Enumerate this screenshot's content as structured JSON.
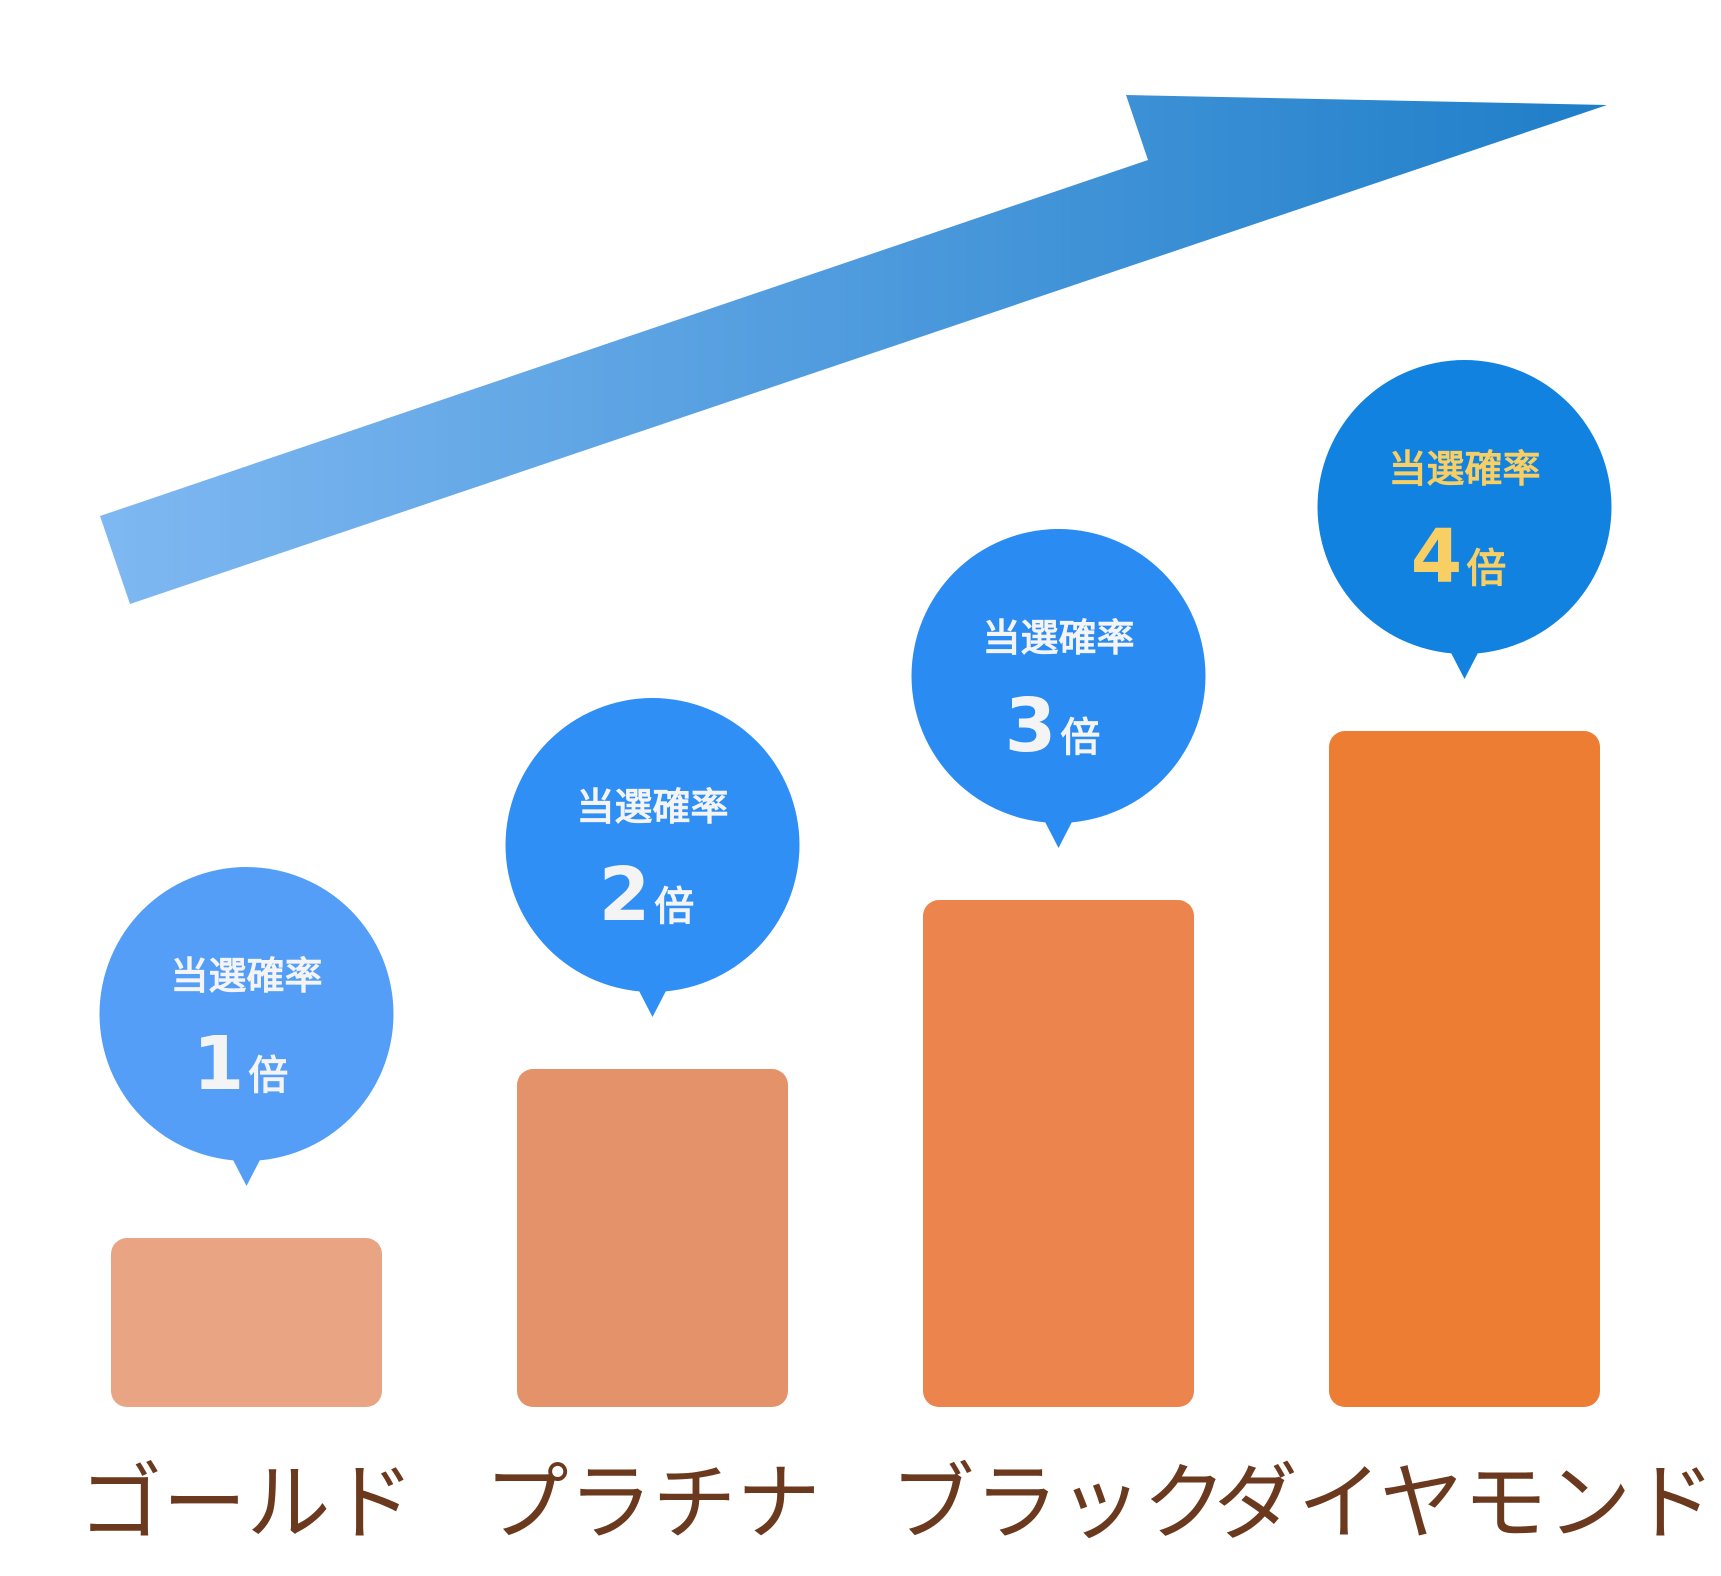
{
  "chart_data": {
    "type": "bar",
    "categories": [
      "ゴールド",
      "プラチナ",
      "ブラック",
      "ダイヤモンド"
    ],
    "values": [
      1,
      2,
      3,
      4
    ],
    "bubble_title": "当選確率",
    "value_unit": "倍",
    "title": "",
    "xlabel": "",
    "ylabel": "",
    "ylim": [
      0,
      4
    ],
    "grid": false,
    "legend": "none",
    "trend_arrow": true,
    "colors": {
      "bars": [
        "#E9A583",
        "#E4926A",
        "#EC844D",
        "#EE7D34"
      ],
      "bubbles": [
        "#549EF8",
        "#2F8FF5",
        "#2A8CF2",
        "#1282E0"
      ],
      "bubble_text": [
        "#F4F4F4",
        "#F4F4F4",
        "#F4F4F4",
        "#F7CF65"
      ],
      "label_text": "#6B3A1E",
      "arrow_start": "#7FB8F2",
      "arrow_end": "#1E7EC8"
    }
  }
}
